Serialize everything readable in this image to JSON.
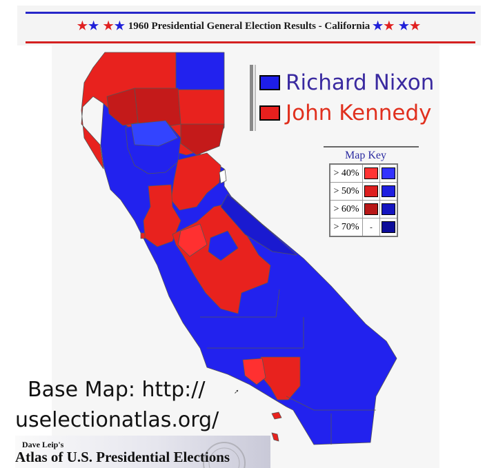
{
  "header": {
    "title": "1960 Presidential General Election Results - California",
    "stars_left": [
      "r",
      "b",
      "r",
      "b"
    ],
    "stars_right": [
      "b",
      "r",
      "b",
      "r"
    ]
  },
  "legend": {
    "items": [
      {
        "label": "Richard Nixon",
        "color": "#1e1ee8",
        "text_color": "#3a2aa0"
      },
      {
        "label": "John Kennedy",
        "color": "#e8201e",
        "text_color": "#e0301e"
      }
    ]
  },
  "map_key": {
    "title": "Map Key",
    "rows": [
      {
        "label": "> 40%",
        "kennedy": "#ff3333",
        "nixon": "#3333ff"
      },
      {
        "label": "> 50%",
        "kennedy": "#dd1f1f",
        "nixon": "#1f1fe0"
      },
      {
        "label": "> 60%",
        "kennedy": "#b81818",
        "nixon": "#1515c0"
      },
      {
        "label": "> 70%",
        "kennedy": "-",
        "nixon": "#0c0c9a"
      }
    ]
  },
  "base_map": {
    "line1": "Base Map:  http://",
    "line2": "uselectionatlas.org/"
  },
  "atlas_banner": {
    "sub": "Dave Leip's",
    "main": "Atlas of U.S. Presidential Elections"
  },
  "colors": {
    "nixon": "#2222ee",
    "nixon_dark": "#1515c8",
    "kennedy": "#e8221e",
    "kennedy_dark": "#c41a1a",
    "kennedy_light": "#ff3030"
  }
}
